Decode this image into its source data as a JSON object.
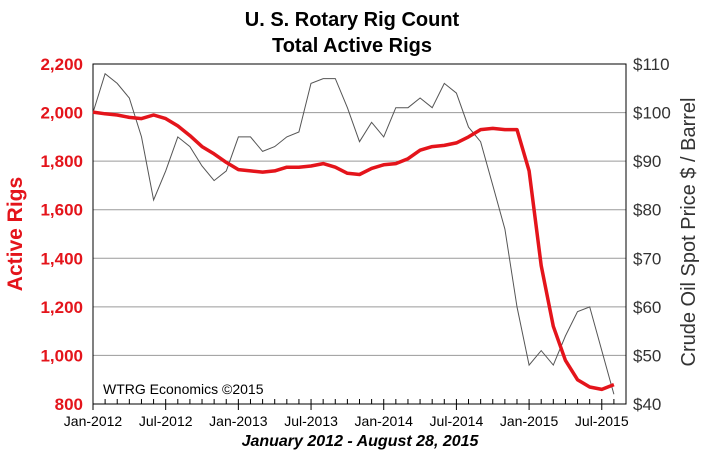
{
  "chart_data": {
    "type": "line",
    "title": "U. S. Rotary Rig Count",
    "subtitle": "Total Active Rigs",
    "xlabel": "January 2012 - August 28, 2015",
    "ylabel_left": "Active Rigs",
    "ylabel_right": "Crude Oil Spot Price $ / Barrel",
    "watermark": "WTRG Economics  ©2015",
    "x_range": [
      "2012-01",
      "2015-09"
    ],
    "x_tick_labels": [
      "Jan-2012",
      "Jul-2012",
      "Jan-2013",
      "Jul-2013",
      "Jan-2014",
      "Jul-2014",
      "Jan-2015",
      "Jul-2015"
    ],
    "x_tick_dates": [
      "2012-01",
      "2012-07",
      "2013-01",
      "2013-07",
      "2014-01",
      "2014-07",
      "2015-01",
      "2015-07"
    ],
    "ylim_left": [
      800,
      2200
    ],
    "ylim_right": [
      40,
      110
    ],
    "y_ticks_left": [
      "800",
      "1,000",
      "1,200",
      "1,400",
      "1,600",
      "1,800",
      "2,000",
      "2,200"
    ],
    "y_ticks_right": [
      "$40",
      "$50",
      "$60",
      "$70",
      "$80",
      "$90",
      "$100",
      "$110"
    ],
    "grid": "horizontal",
    "colors": {
      "rigs": "#e4141b",
      "oil": "#555555",
      "grid": "#9a9a9a",
      "left_axis_text": "#e4141b"
    },
    "series": [
      {
        "axis": "left",
        "x": [
          "2012-01",
          "2012-02",
          "2012-03",
          "2012-04",
          "2012-05",
          "2012-06",
          "2012-07",
          "2012-08",
          "2012-09",
          "2012-10",
          "2012-11",
          "2012-12",
          "2013-01",
          "2013-02",
          "2013-03",
          "2013-04",
          "2013-05",
          "2013-06",
          "2013-07",
          "2013-08",
          "2013-09",
          "2013-10",
          "2013-11",
          "2013-12",
          "2014-01",
          "2014-02",
          "2014-03",
          "2014-04",
          "2014-05",
          "2014-06",
          "2014-07",
          "2014-08",
          "2014-09",
          "2014-10",
          "2014-11",
          "2014-12",
          "2015-01",
          "2015-02",
          "2015-03",
          "2015-04",
          "2015-05",
          "2015-06",
          "2015-07",
          "2015-08"
        ],
        "values": [
          2002,
          1995,
          1990,
          1980,
          1975,
          1990,
          1975,
          1945,
          1905,
          1860,
          1830,
          1795,
          1765,
          1760,
          1755,
          1760,
          1775,
          1775,
          1780,
          1790,
          1775,
          1750,
          1745,
          1770,
          1785,
          1790,
          1810,
          1845,
          1860,
          1865,
          1875,
          1900,
          1930,
          1935,
          1930,
          1930,
          1760,
          1370,
          1120,
          980,
          900,
          870,
          860,
          880
        ]
      },
      {
        "axis": "right",
        "x": [
          "2012-01",
          "2012-02",
          "2012-03",
          "2012-04",
          "2012-05",
          "2012-06",
          "2012-07",
          "2012-08",
          "2012-09",
          "2012-10",
          "2012-11",
          "2012-12",
          "2013-01",
          "2013-02",
          "2013-03",
          "2013-04",
          "2013-05",
          "2013-06",
          "2013-07",
          "2013-08",
          "2013-09",
          "2013-10",
          "2013-11",
          "2013-12",
          "2014-01",
          "2014-02",
          "2014-03",
          "2014-04",
          "2014-05",
          "2014-06",
          "2014-07",
          "2014-08",
          "2014-09",
          "2014-10",
          "2014-11",
          "2014-12",
          "2015-01",
          "2015-02",
          "2015-03",
          "2015-04",
          "2015-05",
          "2015-06",
          "2015-07",
          "2015-08"
        ],
        "values": [
          100,
          108,
          106,
          103,
          95,
          82,
          88,
          95,
          93,
          89,
          86,
          88,
          95,
          95,
          92,
          93,
          95,
          96,
          106,
          107,
          107,
          101,
          94,
          98,
          95,
          101,
          101,
          103,
          101,
          106,
          104,
          97,
          94,
          85,
          76,
          60,
          48,
          51,
          48,
          54,
          59,
          60,
          51,
          42
        ]
      }
    ]
  }
}
